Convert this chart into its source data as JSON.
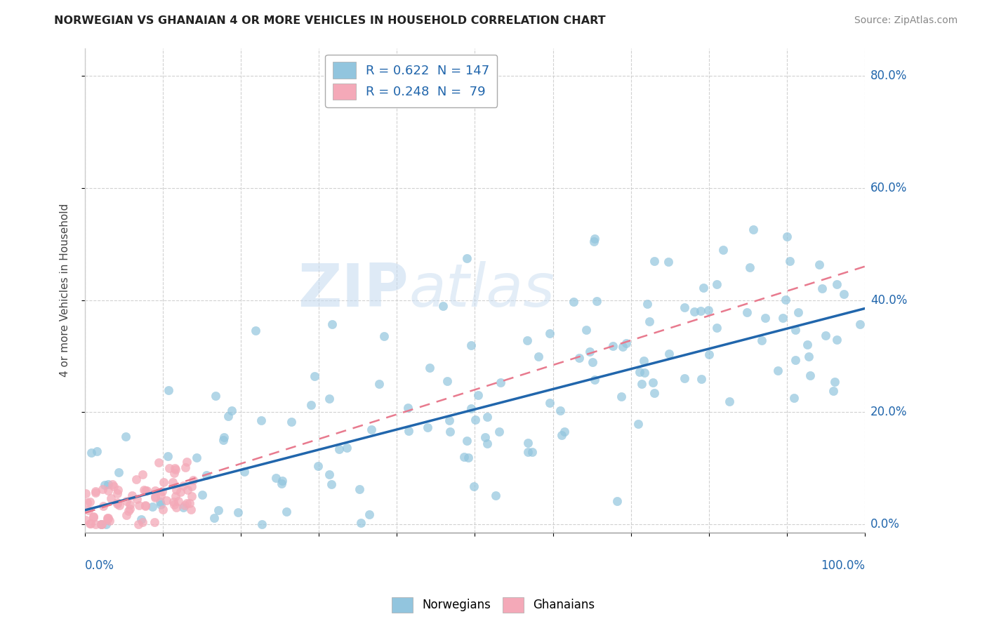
{
  "title": "NORWEGIAN VS GHANAIAN 4 OR MORE VEHICLES IN HOUSEHOLD CORRELATION CHART",
  "source": "Source: ZipAtlas.com",
  "ylabel": "4 or more Vehicles in Household",
  "xlim": [
    0.0,
    1.0
  ],
  "ylim": [
    -0.015,
    0.85
  ],
  "yticks": [
    0.0,
    0.2,
    0.4,
    0.6,
    0.8
  ],
  "ytick_labels": [
    "0.0%",
    "20.0%",
    "40.0%",
    "60.0%",
    "80.0%"
  ],
  "xtick_labels": [
    "0.0%",
    "100.0%"
  ],
  "watermark_zip": "ZIP",
  "watermark_atlas": "atlas",
  "legend_blue_label": "R = 0.622  N = 147",
  "legend_pink_label": "R = 0.248  N =  79",
  "blue_color": "#92C5DE",
  "pink_color": "#F4A9B8",
  "blue_line_color": "#2166AC",
  "pink_line_color": "#E87A8E",
  "background_color": "#ffffff",
  "grid_color": "#cccccc",
  "blue_seed": 12345,
  "pink_seed": 99
}
